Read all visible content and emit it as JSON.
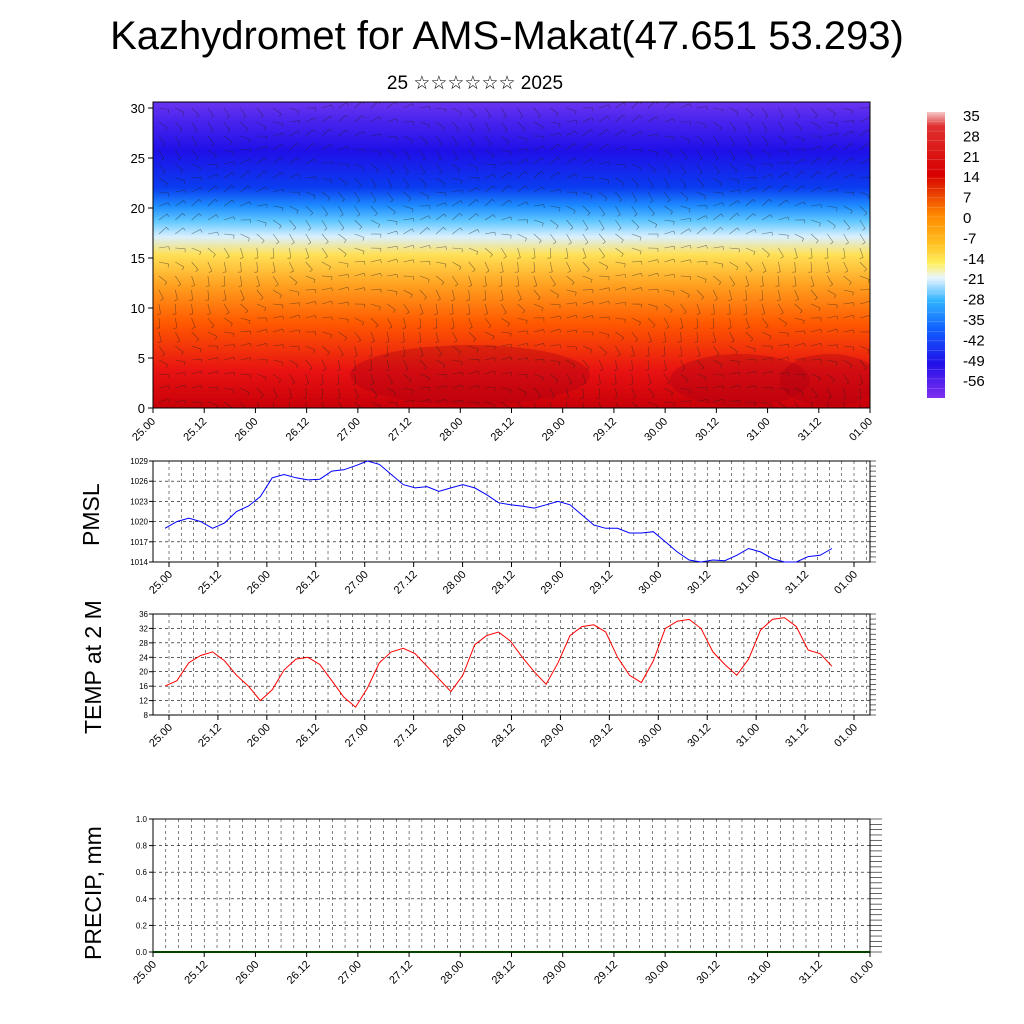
{
  "header": {
    "title": "Kazhydromet for AMS-Makat(47.651 53.293)",
    "subtitle": "25 ☆☆☆☆☆☆ 2025"
  },
  "chart_data": [
    {
      "type": "heatmap",
      "name": "cross-section",
      "xlabel": "",
      "ylabel": "",
      "x_ticks": [
        "25.00",
        "25.12",
        "26.00",
        "26.12",
        "27.00",
        "27.12",
        "28.00",
        "28.12",
        "29.00",
        "29.12",
        "30.00",
        "30.12",
        "31.00",
        "31.12",
        "01.00"
      ],
      "ylim": [
        0,
        30
      ],
      "y_ticks": [
        0,
        5,
        10,
        15,
        20,
        25,
        30
      ],
      "colorbar_labels": [
        "35",
        "28",
        "21",
        "14",
        "7",
        "0",
        "-7",
        "-14",
        "-21",
        "-28",
        "-35",
        "-42",
        "-49",
        "-56"
      ],
      "colors": {
        "warm": "#d4000a",
        "cold": "#2a10e6",
        "neutral": "#ffe45a"
      }
    },
    {
      "type": "line",
      "name": "PMSL",
      "ylabel": "PMSL",
      "ylim": [
        1014,
        1029
      ],
      "y_ticks": [
        1014,
        1017,
        1020,
        1023,
        1026,
        1029
      ],
      "x_ticks": [
        "25.00",
        "25.12",
        "26.00",
        "26.12",
        "27.00",
        "27.12",
        "28.00",
        "28.12",
        "29.00",
        "29.12",
        "30.00",
        "30.12",
        "31.00",
        "31.12",
        "01.00"
      ],
      "color": "#0000ff",
      "values": [
        1019.0,
        1020.0,
        1020.5,
        1020.0,
        1019.0,
        1019.8,
        1021.5,
        1022.3,
        1023.7,
        1026.5,
        1027.0,
        1026.5,
        1026.2,
        1026.3,
        1027.5,
        1027.7,
        1028.3,
        1029.0,
        1028.5,
        1027.0,
        1025.5,
        1025.0,
        1025.2,
        1024.5,
        1025.0,
        1025.5,
        1025.0,
        1024.0,
        1022.8,
        1022.5,
        1022.3,
        1022.0,
        1022.5,
        1023.0,
        1022.5,
        1021.0,
        1019.5,
        1019.0,
        1019.0,
        1018.3,
        1018.3,
        1018.5,
        1017.0,
        1015.5,
        1014.3,
        1014.0,
        1014.3,
        1014.2,
        1015.0,
        1016.0,
        1015.5,
        1014.5,
        1014.0,
        1014.0,
        1014.8,
        1015.0,
        1016.0
      ]
    },
    {
      "type": "line",
      "name": "TEMP at 2 M",
      "ylabel": "TEMP at 2 M",
      "ylim": [
        8,
        36
      ],
      "y_ticks": [
        8,
        12,
        16,
        20,
        24,
        28,
        32,
        36
      ],
      "x_ticks": [
        "25.00",
        "25.12",
        "26.00",
        "26.12",
        "27.00",
        "27.12",
        "28.00",
        "28.12",
        "29.00",
        "29.12",
        "30.00",
        "30.12",
        "31.00",
        "31.12",
        "01.00"
      ],
      "color": "#ff0000",
      "values": [
        16.0,
        17.5,
        22.5,
        24.5,
        25.5,
        23.0,
        19.0,
        16.0,
        12.0,
        15.0,
        20.5,
        23.5,
        24.0,
        22.0,
        17.5,
        13.0,
        10.2,
        15.5,
        22.5,
        25.5,
        26.5,
        25.0,
        21.5,
        18.0,
        14.5,
        19.0,
        27.5,
        30.0,
        31.0,
        28.5,
        24.0,
        20.0,
        16.5,
        22.5,
        30.0,
        32.5,
        33.0,
        31.0,
        24.0,
        19.0,
        17.0,
        23.0,
        32.0,
        34.0,
        34.5,
        32.0,
        25.5,
        22.0,
        19.0,
        23.5,
        31.5,
        34.5,
        35.0,
        32.5,
        26.0,
        25.0,
        21.5
      ]
    },
    {
      "type": "bar",
      "name": "PRECIP",
      "ylabel": "PRECIP, mm",
      "ylim": [
        0.0,
        1.0
      ],
      "y_ticks": [
        "0.0",
        "0.2",
        "0.4",
        "0.6",
        "0.8",
        "1.0"
      ],
      "x_ticks": [
        "25.00",
        "25.12",
        "26.00",
        "26.12",
        "27.00",
        "27.12",
        "28.00",
        "28.12",
        "29.00",
        "29.12",
        "30.00",
        "30.12",
        "31.00",
        "31.12",
        "01.00"
      ],
      "color": "#004400",
      "values": []
    }
  ]
}
